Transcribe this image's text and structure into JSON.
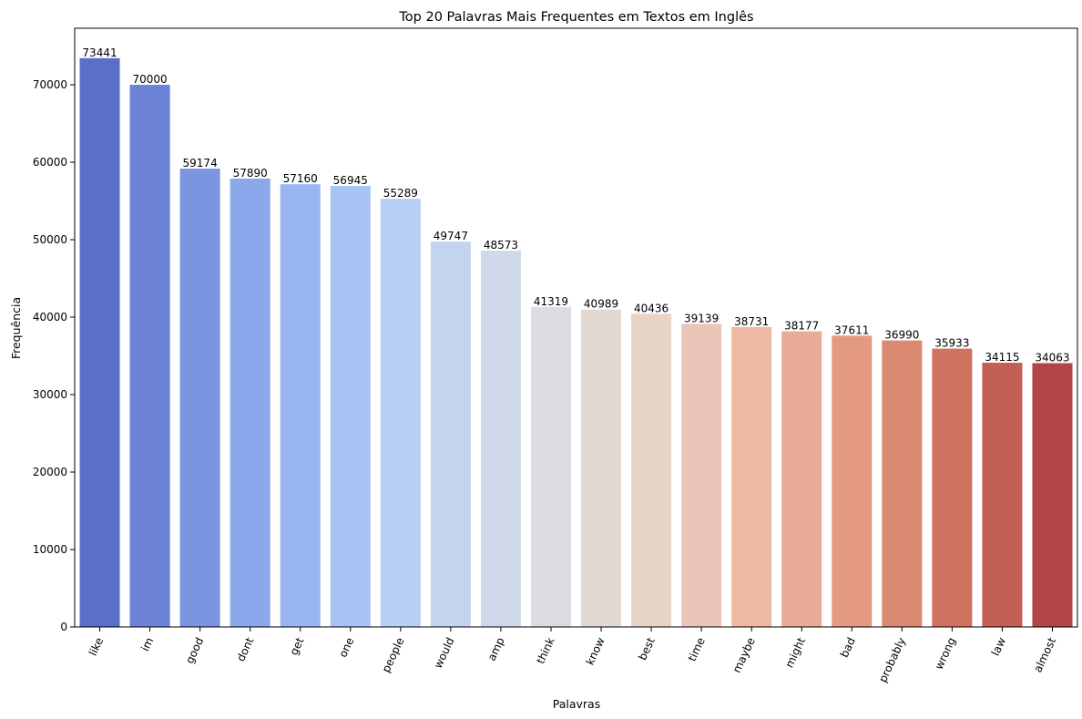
{
  "chart_data": {
    "type": "bar",
    "title": "Top 20 Palavras Mais Frequentes em Textos em Inglês",
    "xlabel": "Palavras",
    "ylabel": "Frequência",
    "ylim": [
      0,
      77300
    ],
    "yticks": [
      0,
      10000,
      20000,
      30000,
      40000,
      50000,
      60000,
      70000
    ],
    "grid": false,
    "legend": "none",
    "categories": [
      "like",
      "im",
      "good",
      "dont",
      "get",
      "one",
      "people",
      "would",
      "amp",
      "think",
      "know",
      "best",
      "time",
      "maybe",
      "might",
      "bad",
      "probably",
      "wrong",
      "law",
      "almost"
    ],
    "values": [
      73441,
      70000,
      59174,
      57890,
      57160,
      56945,
      55289,
      49747,
      48573,
      41319,
      40989,
      40436,
      39139,
      38731,
      38177,
      37611,
      36990,
      35933,
      34115,
      34063
    ],
    "colors": [
      "#5a6fc8",
      "#6b82d6",
      "#7b95e0",
      "#8ba8ec",
      "#9ab6f2",
      "#a9c3f5",
      "#b7d0f6",
      "#c4d4ef",
      "#cfd9e9",
      "#dbdde3",
      "#e2d9d3",
      "#e8d3c7",
      "#eac6b8",
      "#ecb9a2",
      "#e9ad97",
      "#e49a80",
      "#db8a72",
      "#cf735f",
      "#c35f55",
      "#b34548"
    ]
  }
}
